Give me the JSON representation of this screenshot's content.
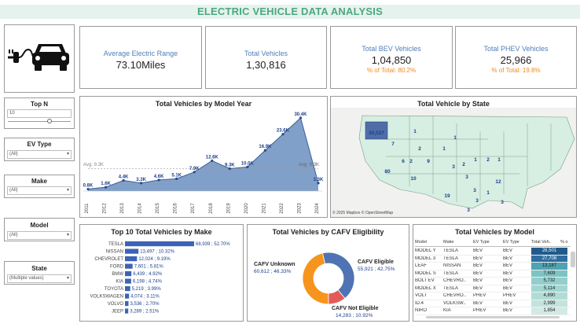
{
  "header": {
    "title": "ELECTRIC VEHICLE DATA ANALYSIS"
  },
  "logo": {
    "icon": "ev-charging-car-icon"
  },
  "kpis": {
    "range": {
      "label": "Average Electric Range",
      "value": "73.10Miles"
    },
    "total": {
      "label": "Total Vehicles",
      "value": "1,30,816"
    },
    "bev": {
      "label": "Total BEV Vehicles",
      "value": "1,04,850",
      "pct": "% of Total: 80.2%"
    },
    "phev": {
      "label": "Total PHEV Vehicles",
      "value": "25,966",
      "pct": "% of Total: 19.8%"
    }
  },
  "filters": {
    "topn": {
      "title": "Top N",
      "value": "10"
    },
    "ev_type": {
      "title": "EV Type",
      "value": "(All)"
    },
    "make": {
      "title": "Make",
      "value": "(All)"
    },
    "model": {
      "title": "Model",
      "value": "(All)"
    },
    "state": {
      "title": "State",
      "value": "(Multiple values)"
    }
  },
  "model_year": {
    "title": "Total Vehicles by Model Year",
    "avg_left": "Avg: 9.3K",
    "avg_right": "Avg: 9.3K"
  },
  "state_map": {
    "title": "Total Vehicle by State",
    "credit": "© 2025 Mapbox © OpenStreetMap",
    "labels": [
      "30,527",
      "1",
      "7",
      "1",
      "2",
      "1",
      "6",
      "2",
      "9",
      "2",
      "3",
      "1",
      "2",
      "1",
      "80",
      "10",
      "3",
      "12",
      "3",
      "1",
      "3",
      "19",
      "3",
      "3"
    ]
  },
  "make_panel": {
    "title": "Top 10 Total Vehicles by Make"
  },
  "cafv_panel": {
    "title": "Total Vehicles by CAFV Eligibility",
    "unknown_name": "CAFV Unknown",
    "unknown_value": "60,612 ; 46.33%",
    "eligible_name": "CAFV Eligible",
    "eligible_value": "55,921 ; 42.75%",
    "not_eligible_name": "CAFV Not Eligible",
    "not_eligible_value": "14,283 ; 10.92%"
  },
  "model_table": {
    "title": "Total Vehicles by Model",
    "headers": [
      "Model",
      "Make",
      "EV Type",
      "EV Type",
      "Total Veh..",
      "% o"
    ],
    "rows": [
      [
        "MODEL Y",
        "TESLA",
        "BEV",
        "BEV",
        "28,501"
      ],
      [
        "MODEL 3",
        "TESLA",
        "BEV",
        "BEV",
        "27,708"
      ],
      [
        "LEAF",
        "NISSAN",
        "BEV",
        "BEV",
        "13,187"
      ],
      [
        "MODEL S",
        "TESLA",
        "BEV",
        "BEV",
        "7,609"
      ],
      [
        "BOLT EV",
        "CHEVRO..",
        "BEV",
        "BEV",
        "5,732"
      ],
      [
        "MODEL X",
        "TESLA",
        "BEV",
        "BEV",
        "5,114"
      ],
      [
        "VOLT",
        "CHEVRO..",
        "PHEV",
        "PHEV",
        "4,890"
      ],
      [
        "ID.4",
        "VOLKSW..",
        "BEV",
        "BEV",
        "2,999"
      ],
      [
        "NIRO",
        "KIA",
        "PHEV",
        "BEV",
        "1,854"
      ]
    ],
    "row_colors": [
      "#1f5a8c",
      "#2f6d9e",
      "#4fa3b3",
      "#7cc4c4",
      "#92cfcc",
      "#a1d6d1",
      "#b1dcd6",
      "#c3e3dd",
      "#d3eae4"
    ]
  },
  "colors": {
    "title_green": "#4aa880",
    "area_blue": "#6a8fbf",
    "bar_blue": "#3b63b7",
    "donut_orange": "#f7941d",
    "donut_blue": "#4f73b3",
    "donut_red": "#e45a5a",
    "map_fill": "#d6efe2",
    "map_wa": "#4f6ea8"
  },
  "chart_data": [
    {
      "type": "area",
      "title": "Total Vehicles by Model Year",
      "categories": [
        "2011",
        "2012",
        "2013",
        "2014",
        "2015",
        "2016",
        "2017",
        "2018",
        "2019",
        "2020",
        "2021",
        "2022",
        "2023",
        "2024"
      ],
      "values": [
        0.8,
        1.6,
        4.4,
        3.3,
        4.6,
        5.1,
        7.9,
        12.6,
        9.3,
        10.0,
        16.9,
        23.6,
        30.4,
        3.3
      ],
      "data_labels": [
        "0.8K",
        "1.6K",
        "4.4K",
        "3.3K",
        "4.6K",
        "5.1K",
        "7.9K",
        "12.6K",
        "9.3K",
        "10.0K",
        "16.9K",
        "23.6K",
        "30.4K",
        "3.3K"
      ],
      "reference_line": 9.3,
      "ylim": [
        0,
        32
      ]
    },
    {
      "type": "bar",
      "title": "Top 10 Total Vehicles by Make",
      "categories": [
        "TESLA",
        "NISSAN",
        "CHEVROLET",
        "FORD",
        "BMW",
        "KIA",
        "TOYOTA",
        "VOLKSWAGEN",
        "VOLVO",
        "JEEP"
      ],
      "values": [
        68939,
        13497,
        12024,
        7601,
        6439,
        6198,
        5219,
        4074,
        3536,
        3289
      ],
      "data_labels": [
        "68,939 ; 52.70%",
        "13,497 ; 10.32%",
        "12,024 ; 9.19%",
        "7,601 ; 5.81%",
        "6,439 ; 4.92%",
        "6,198 ; 4.74%",
        "5,219 ; 3.99%",
        "4,074 ; 3.11%",
        "3,536 ; 2.70%",
        "3,289 ; 2.51%"
      ]
    },
    {
      "type": "pie",
      "title": "Total Vehicles by CAFV Eligibility",
      "categories": [
        "CAFV Unknown",
        "CAFV Eligible",
        "CAFV Not Eligible"
      ],
      "values": [
        60612,
        55921,
        14283
      ],
      "percents": [
        46.33,
        42.75,
        10.92
      ]
    }
  ]
}
